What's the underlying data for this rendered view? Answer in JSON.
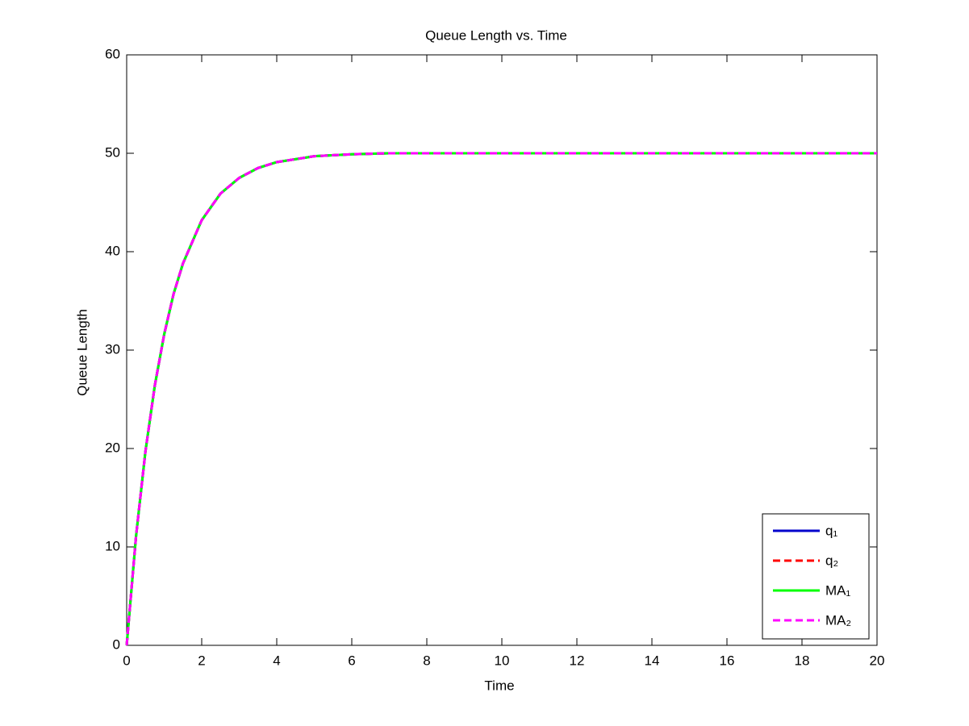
{
  "chart_data": {
    "type": "line",
    "title": "Queue Length vs. Time",
    "xlabel": "Time",
    "ylabel": "Queue Length",
    "x": [
      0,
      0.25,
      0.5,
      0.75,
      1,
      1.25,
      1.5,
      2,
      2.5,
      3,
      3.5,
      4,
      5,
      6,
      7,
      8,
      10,
      12,
      14,
      16,
      18,
      20
    ],
    "series": [
      {
        "name": "q₁",
        "color": "#0000cc",
        "line_style": "solid",
        "values": [
          0,
          11.1,
          19.7,
          26.4,
          31.6,
          35.7,
          38.8,
          43.2,
          45.9,
          47.5,
          48.5,
          49.1,
          49.7,
          49.9,
          50,
          50,
          50,
          50,
          50,
          50,
          50,
          50
        ]
      },
      {
        "name": "q₂",
        "color": "#ff0000",
        "line_style": "dashed",
        "values": [
          0,
          11.1,
          19.7,
          26.4,
          31.6,
          35.7,
          38.8,
          43.2,
          45.9,
          47.5,
          48.5,
          49.1,
          49.7,
          49.9,
          50,
          50,
          50,
          50,
          50,
          50,
          50,
          50
        ]
      },
      {
        "name": "MA₁",
        "color": "#00ff00",
        "line_style": "solid",
        "values": [
          0,
          11.1,
          19.7,
          26.4,
          31.6,
          35.7,
          38.8,
          43.2,
          45.9,
          47.5,
          48.5,
          49.1,
          49.7,
          49.9,
          50,
          50,
          50,
          50,
          50,
          50,
          50,
          50
        ]
      },
      {
        "name": "MA₂",
        "color": "#ff00ff",
        "line_style": "dashed",
        "values": [
          0,
          11.1,
          19.7,
          26.4,
          31.6,
          35.7,
          38.8,
          43.2,
          45.9,
          47.5,
          48.5,
          49.1,
          49.7,
          49.9,
          50,
          50,
          50,
          50,
          50,
          50,
          50,
          50
        ]
      }
    ],
    "xlim": [
      0,
      20
    ],
    "xticks": [
      0,
      2,
      4,
      6,
      8,
      10,
      12,
      14,
      16,
      18,
      20
    ],
    "ylim": [
      0,
      60
    ],
    "yticks": [
      0,
      10,
      20,
      30,
      40,
      50,
      60
    ],
    "grid": false,
    "legend": "lower right"
  }
}
